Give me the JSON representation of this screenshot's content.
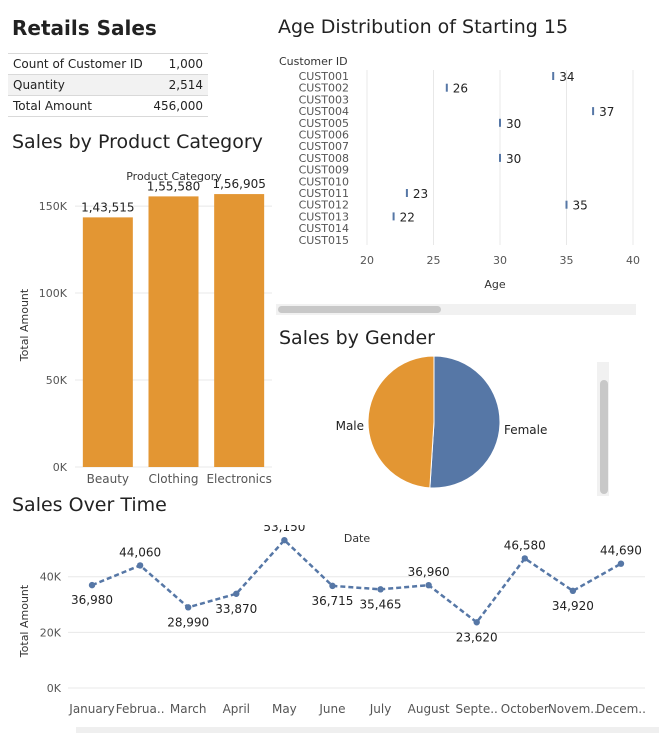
{
  "kpi": {
    "title": "Retails Sales",
    "rows": [
      {
        "label": "Count of Customer ID",
        "value": "1,000"
      },
      {
        "label": "Quantity",
        "value": "2,514"
      },
      {
        "label": "Total Amount",
        "value": "456,000"
      }
    ]
  },
  "colors": {
    "orange": "#e39633",
    "blue": "#5677a6",
    "grid": "#e8e8e8"
  },
  "chart_data": [
    {
      "id": "age",
      "type": "scatter",
      "title": "Age Distribution of Starting 15",
      "ylabel": "Customer ID",
      "xlabel": "Age",
      "categories": [
        "CUST001",
        "CUST002",
        "CUST003",
        "CUST004",
        "CUST005",
        "CUST006",
        "CUST007",
        "CUST008",
        "CUST009",
        "CUST010",
        "CUST011",
        "CUST012",
        "CUST013",
        "CUST014",
        "CUST015"
      ],
      "values": [
        34,
        26,
        null,
        37,
        30,
        null,
        null,
        30,
        null,
        null,
        23,
        35,
        22,
        null,
        null
      ],
      "xticks": [
        "20",
        "25",
        "30",
        "35",
        "40"
      ],
      "xlim": [
        20,
        40
      ],
      "grid": true
    },
    {
      "id": "category",
      "type": "bar",
      "title": "Sales by Product Category",
      "header": "Product Category",
      "ylabel": "Total Amount",
      "categories": [
        "Beauty",
        "Clothing",
        "Electronics"
      ],
      "values": [
        143515,
        155580,
        156905
      ],
      "labels": [
        "1,43,515",
        "1,55,580",
        "1,56,905"
      ],
      "yticks": [
        {
          "v": 0,
          "t": "0K"
        },
        {
          "v": 50000,
          "t": "50K"
        },
        {
          "v": 100000,
          "t": "100K"
        },
        {
          "v": 150000,
          "t": "150K"
        }
      ],
      "ylim": [
        0,
        165000
      ]
    },
    {
      "id": "gender",
      "type": "pie",
      "title": "Sales by Gender",
      "slices": [
        {
          "name": "Female",
          "value": 51
        },
        {
          "name": "Male",
          "value": 49
        }
      ]
    },
    {
      "id": "time",
      "type": "line",
      "title": "Sales Over Time",
      "header": "Date",
      "ylabel": "Total Amount",
      "categories": [
        "January",
        "Februa..",
        "March",
        "April",
        "May",
        "June",
        "July",
        "August",
        "Septe..",
        "October",
        "Novem..",
        "Decem.."
      ],
      "values": [
        36980,
        44060,
        28990,
        33870,
        53150,
        36715,
        35465,
        36960,
        23620,
        46580,
        34920,
        44690
      ],
      "labels": [
        "36,980",
        "44,060",
        "28,990",
        "33,870",
        "53,150",
        "36,715",
        "35,465",
        "36,960",
        "23,620",
        "46,580",
        "34,920",
        "44,690"
      ],
      "yticks": [
        {
          "v": 0,
          "t": "0K"
        },
        {
          "v": 20000,
          "t": "20K"
        },
        {
          "v": 40000,
          "t": "40K"
        }
      ],
      "ylim": [
        0,
        55000
      ]
    }
  ]
}
